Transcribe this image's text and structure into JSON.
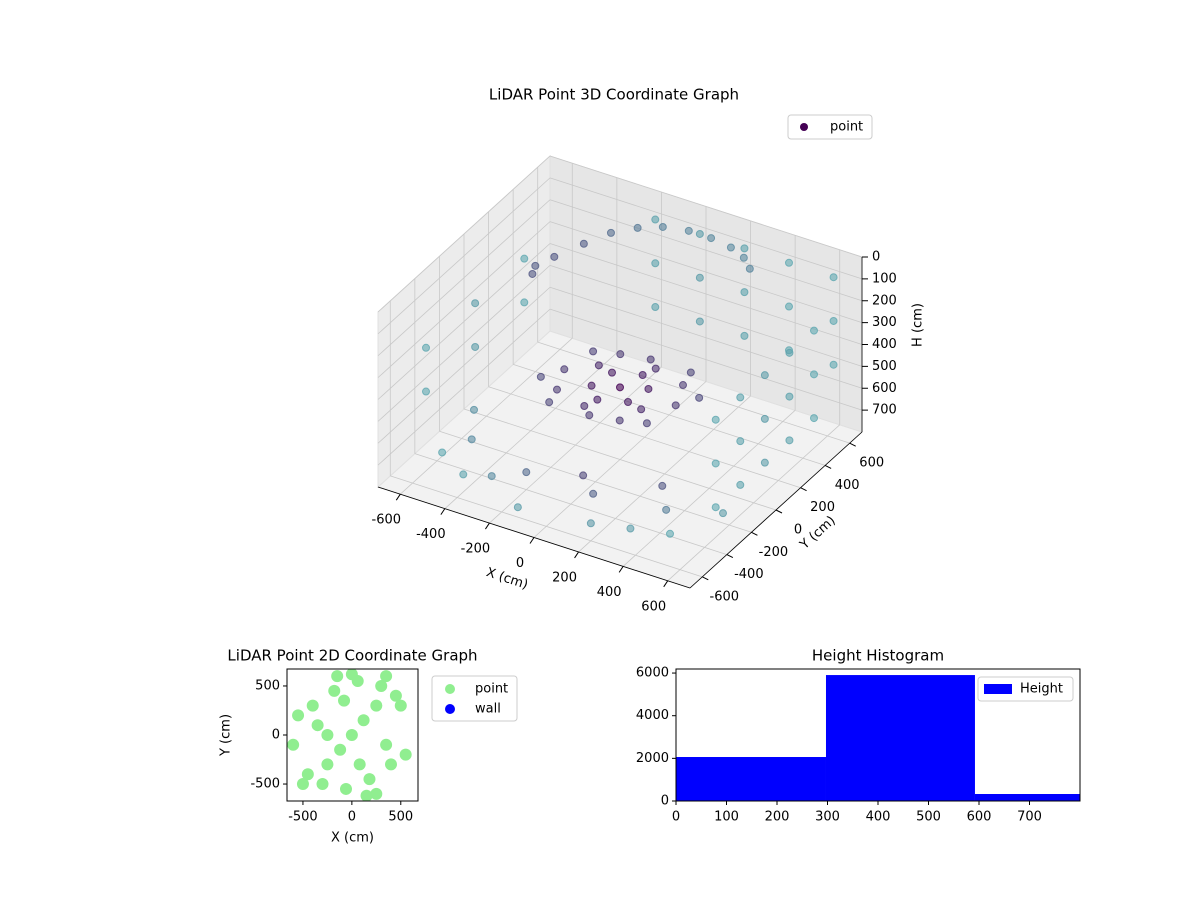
{
  "chart_data": [
    {
      "type": "scatter3d",
      "title": "LiDAR Point 3D Coordinate Graph",
      "xlabel": "X (cm)",
      "ylabel": "Y (cm)",
      "zlabel": "H (cm)",
      "xlim": [
        -700,
        700
      ],
      "ylim": [
        -700,
        700
      ],
      "zlim": [
        0,
        800
      ],
      "zinverted": true,
      "xticks": [
        -600,
        -400,
        -200,
        0,
        200,
        400,
        600
      ],
      "yticks": [
        -600,
        -400,
        -200,
        0,
        200,
        400,
        600
      ],
      "zticks": [
        0,
        100,
        200,
        300,
        400,
        500,
        600,
        700
      ],
      "grid": true,
      "legend": "upper right",
      "series": [
        {
          "name": "point",
          "color": "#440154",
          "far_color": "#5fa8b0",
          "x": [
            -200,
            -200,
            -200,
            0,
            0,
            0,
            200,
            200,
            200,
            400,
            400,
            400,
            600,
            600,
            600,
            650,
            650,
            650,
            650,
            650,
            650,
            650,
            650,
            650,
            650,
            650,
            650,
            650,
            650,
            650,
            -650,
            -650,
            -650,
            -650,
            -650,
            -650,
            -350,
            -300,
            -250,
            -180,
            -100,
            0,
            100,
            200,
            280,
            340,
            -380,
            -360,
            0,
            100,
            -100,
            150,
            -150,
            200,
            -200,
            50,
            -50,
            250,
            -250,
            0,
            0,
            300,
            -300,
            120,
            -120,
            180,
            -180,
            80,
            -80,
            220,
            -220,
            30,
            -30,
            -500,
            -300,
            100,
            300,
            500,
            -600,
            200,
            -100,
            400,
            -400,
            0,
            600,
            -200,
            350,
            -550
          ],
          "y": [
            650,
            650,
            650,
            650,
            650,
            650,
            650,
            650,
            650,
            650,
            650,
            650,
            650,
            650,
            650,
            -400,
            -400,
            -400,
            -200,
            -200,
            -200,
            0,
            0,
            0,
            200,
            200,
            200,
            400,
            400,
            400,
            -400,
            -400,
            0,
            0,
            400,
            400,
            100,
            250,
            380,
            470,
            530,
            560,
            560,
            540,
            500,
            440,
            0,
            -60,
            0,
            50,
            -50,
            -100,
            100,
            150,
            -150,
            200,
            -200,
            0,
            0,
            250,
            -250,
            100,
            -100,
            -220,
            220,
            250,
            -250,
            -80,
            80,
            -180,
            180,
            130,
            -130,
            -300,
            -500,
            -400,
            -200,
            -500,
            -100,
            -600,
            -650,
            -350,
            -550,
            -300,
            -250,
            -400,
            -550,
            -450
          ],
          "z": [
            100,
            300,
            500,
            100,
            300,
            500,
            100,
            300,
            500,
            100,
            300,
            500,
            100,
            300,
            500,
            200,
            400,
            600,
            200,
            400,
            600,
            200,
            400,
            600,
            200,
            400,
            600,
            200,
            400,
            600,
            300,
            500,
            300,
            500,
            300,
            500,
            40,
            40,
            40,
            40,
            40,
            40,
            40,
            40,
            40,
            40,
            40,
            40,
            470,
            470,
            470,
            470,
            470,
            470,
            470,
            470,
            470,
            470,
            470,
            470,
            470,
            470,
            470,
            470,
            470,
            470,
            470,
            470,
            470,
            470,
            470,
            470,
            470,
            720,
            720,
            720,
            720,
            720,
            720,
            720,
            720,
            720,
            720,
            720,
            720,
            720,
            720,
            720
          ]
        }
      ]
    },
    {
      "type": "scatter",
      "title": "LiDAR Point 2D Coordinate Graph",
      "xlabel": "X (cm)",
      "ylabel": "Y (cm)",
      "xlim": [
        -663,
        676
      ],
      "ylim": [
        -673,
        673
      ],
      "xticks": [
        -500,
        0,
        500
      ],
      "yticks": [
        -500,
        0,
        500
      ],
      "legend": "outside right",
      "series": [
        {
          "name": "point",
          "color": "#90ee90",
          "x": [
            0,
            120,
            -120,
            250,
            -250,
            350,
            -350,
            450,
            -450,
            550,
            -550,
            60,
            -60,
            180,
            -180,
            300,
            -300,
            400,
            -400,
            -600,
            0,
            150,
            -150,
            250,
            -250,
            500,
            -500,
            80,
            -80,
            350
          ],
          "y": [
            0,
            150,
            -150,
            300,
            -300,
            -100,
            100,
            400,
            -400,
            -200,
            200,
            550,
            -550,
            -450,
            450,
            500,
            -500,
            -300,
            300,
            -100,
            620,
            -620,
            600,
            -600,
            0,
            300,
            -500,
            -300,
            350,
            600
          ]
        },
        {
          "name": "wall",
          "color": "#0000ff",
          "x": [],
          "y": []
        }
      ]
    },
    {
      "type": "histogram",
      "title": "Height Histogram",
      "bins": [
        0,
        297,
        592,
        800
      ],
      "values": [
        2063,
        5906,
        328
      ],
      "name": "Height",
      "color": "#0000ff",
      "xlim": [
        0,
        800
      ],
      "ylim": [
        0,
        6190
      ],
      "xticks": [
        0,
        100,
        200,
        300,
        400,
        500,
        600,
        700
      ],
      "yticks": [
        0,
        2000,
        4000,
        6000
      ],
      "legend": "upper right"
    }
  ]
}
